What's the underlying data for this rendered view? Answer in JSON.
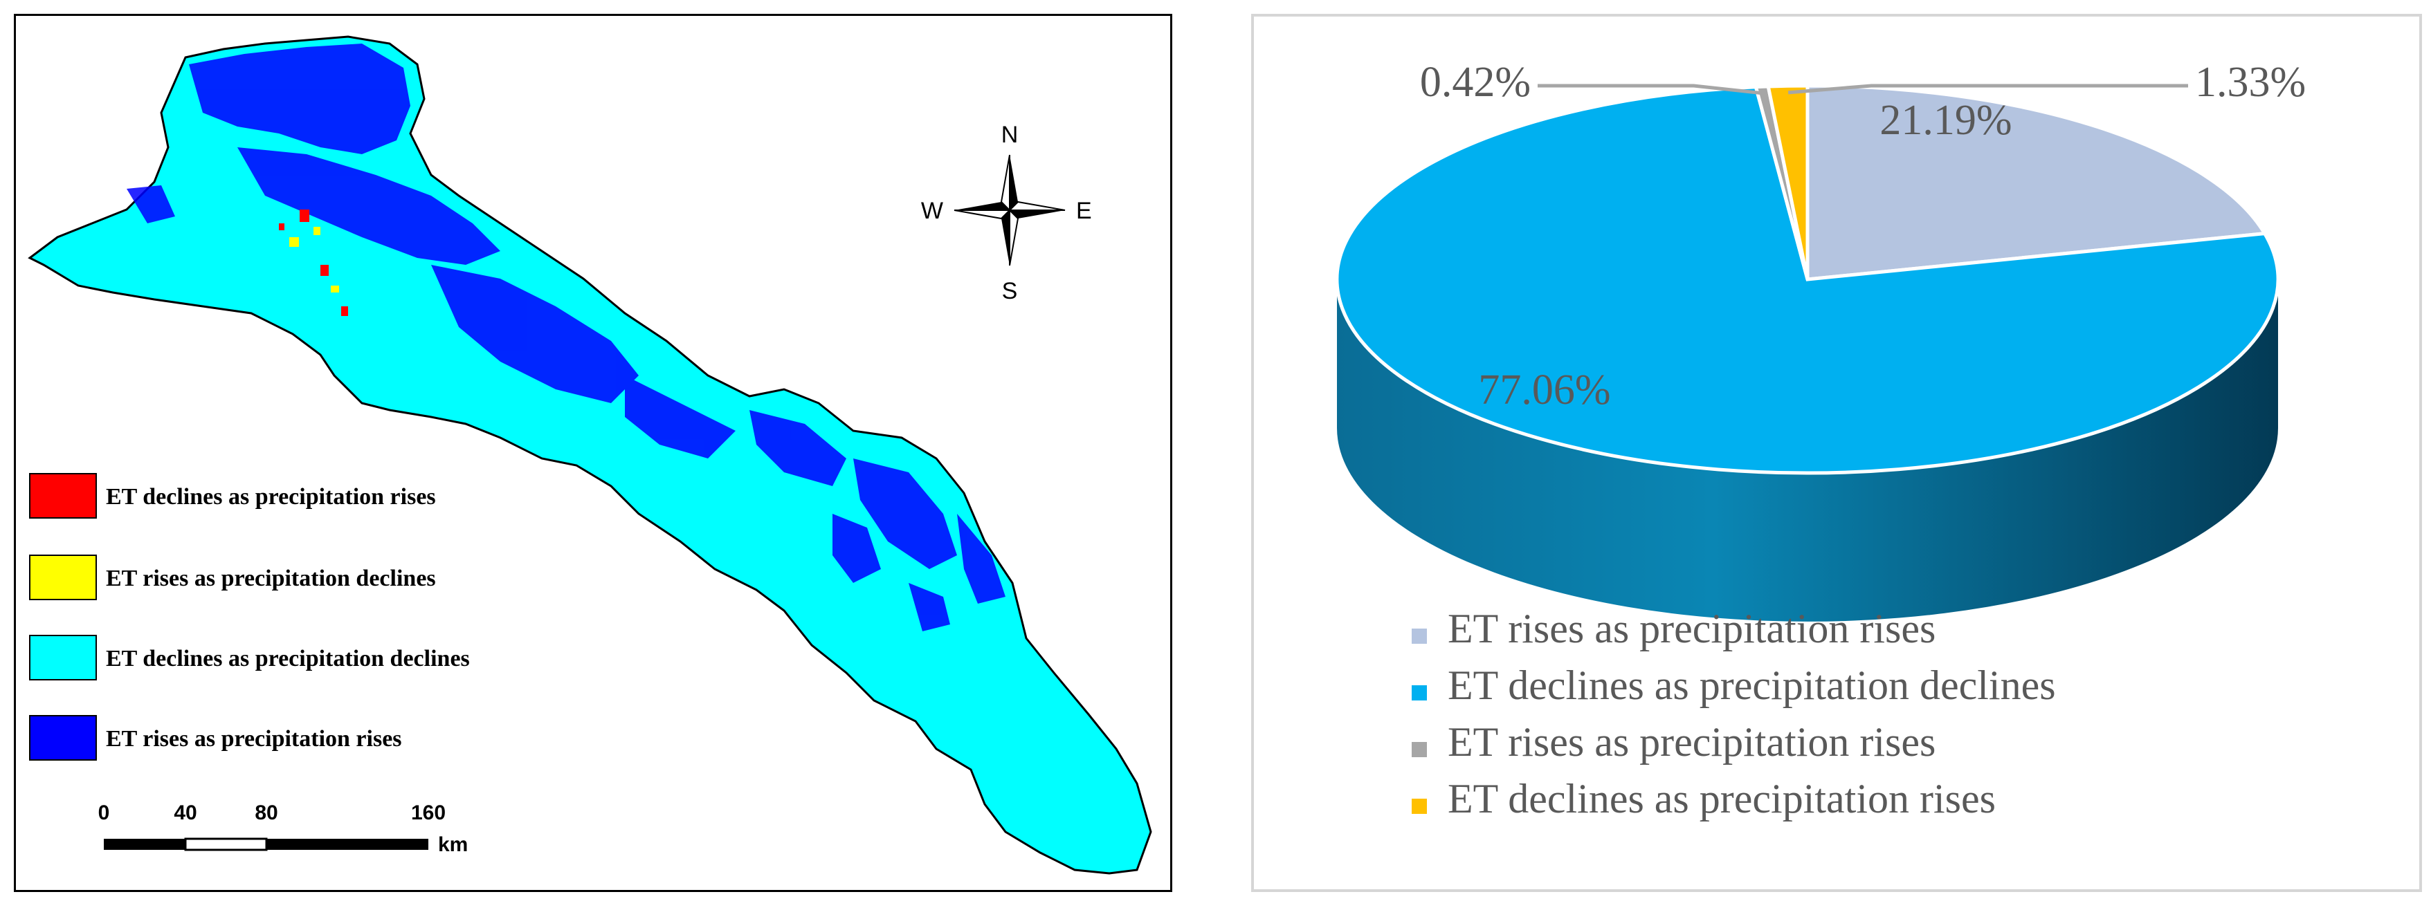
{
  "map": {
    "legend": [
      {
        "label": "ET declines as precipitation rises",
        "color": "#ff0000"
      },
      {
        "label": "ET rises as precipitation declines",
        "color": "#ffff00"
      },
      {
        "label": "ET declines as precipitation declines",
        "color": "#00ffff"
      },
      {
        "label": "ET rises as precipitation rises",
        "color": "#0000ff"
      }
    ],
    "compass": {
      "n": "N",
      "s": "S",
      "e": "E",
      "w": "W"
    },
    "scalebar": {
      "ticks": [
        "0",
        "40",
        "80",
        "160"
      ],
      "unit": "km"
    }
  },
  "chart_data": {
    "type": "pie",
    "slices": [
      {
        "label": "ET rises as precipitation rises",
        "value": 21.19,
        "display": "21.19%",
        "color": "#b4c4e0"
      },
      {
        "label": "ET declines as precipitation declines",
        "value": 77.06,
        "display": "77.06%",
        "color": "#00b0f0"
      },
      {
        "label": "ET rises as precipitation rises",
        "value": 0.42,
        "display": "0.42%",
        "color": "#a6a6a6"
      },
      {
        "label": "ET declines as precipitation rises",
        "value": 1.33,
        "display": "1.33%",
        "color": "#ffc000"
      }
    ],
    "legend_position": "bottom"
  }
}
